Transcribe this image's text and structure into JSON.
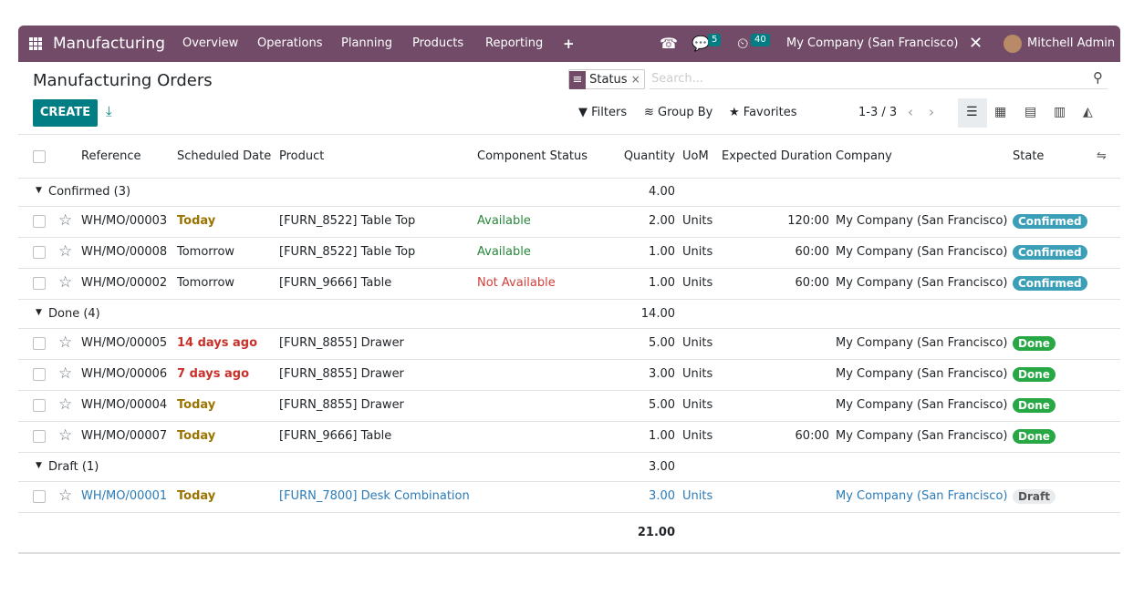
{
  "navbar": {
    "app": "Manufacturing",
    "menu": [
      "Overview",
      "Operations",
      "Planning",
      "Products",
      "Reporting",
      "+"
    ],
    "messages_badge": "5",
    "activities_badge": "40",
    "company": "My Company (San Francisco)",
    "user": "Mitchell Admin"
  },
  "control_panel": {
    "title": "Manufacturing Orders",
    "create": "CREATE",
    "facet_label": "Status",
    "facet_remove": "×",
    "search_placeholder": "Search...",
    "filters": "Filters",
    "group_by": "Group By",
    "favorites": "Favorites",
    "pager": "1-3 / 3"
  },
  "table": {
    "columns": [
      "Reference",
      "Scheduled Date",
      "Product",
      "Component Status",
      "Quantity",
      "UoM",
      "Expected Duration",
      "Company",
      "State"
    ],
    "groups": [
      {
        "name": "Confirmed (3)",
        "quantity": "4.00",
        "rows": [
          {
            "reference": "WH/MO/00003",
            "scheduled_date": "Today",
            "date_color": "#9a7400",
            "product": "[FURN_8522] Table Top",
            "component_status": "Available",
            "status_color": "#28873a",
            "quantity": "2.00",
            "uom": "Units",
            "expected_duration": "120:00",
            "company": "My Company (San Francisco)",
            "state": "Confirmed",
            "state_color": "#3c9fb8"
          },
          {
            "reference": "WH/MO/00008",
            "scheduled_date": "Tomorrow",
            "product": "[FURN_8522] Table Top",
            "component_status": "Available",
            "status_color": "#28873a",
            "quantity": "1.00",
            "uom": "Units",
            "expected_duration": "60:00",
            "company": "My Company (San Francisco)",
            "state": "Confirmed",
            "state_color": "#3c9fb8"
          },
          {
            "reference": "WH/MO/00002",
            "scheduled_date": "Tomorrow",
            "product": "[FURN_9666] Table",
            "component_status": "Not Available",
            "status_color": "#d23f3a",
            "quantity": "1.00",
            "uom": "Units",
            "expected_duration": "60:00",
            "company": "My Company (San Francisco)",
            "state": "Confirmed",
            "state_color": "#3c9fb8"
          }
        ]
      },
      {
        "name": "Done (4)",
        "quantity": "14.00",
        "rows": [
          {
            "reference": "WH/MO/00005",
            "scheduled_date": "14 days ago",
            "date_color": "#c8312a",
            "product": "[FURN_8855] Drawer",
            "quantity": "5.00",
            "uom": "Units",
            "company": "My Company (San Francisco)",
            "state": "Done",
            "state_color": "#28a745"
          },
          {
            "reference": "WH/MO/00006",
            "scheduled_date": "7 days ago",
            "date_color": "#c8312a",
            "product": "[FURN_8855] Drawer",
            "quantity": "3.00",
            "uom": "Units",
            "company": "My Company (San Francisco)",
            "state": "Done",
            "state_color": "#28a745"
          },
          {
            "reference": "WH/MO/00004",
            "scheduled_date": "Today",
            "date_color": "#9a7400",
            "product": "[FURN_8855] Drawer",
            "quantity": "5.00",
            "uom": "Units",
            "company": "My Company (San Francisco)",
            "state": "Done",
            "state_color": "#28a745"
          },
          {
            "reference": "WH/MO/00007",
            "scheduled_date": "Today",
            "date_color": "#9a7400",
            "product": "[FURN_9666] Table",
            "quantity": "1.00",
            "uom": "Units",
            "expected_duration": "60:00",
            "company": "My Company (San Francisco)",
            "state": "Done",
            "state_color": "#28a745"
          }
        ]
      },
      {
        "name": "Draft (1)",
        "quantity": "3.00",
        "rows": [
          {
            "reference": "WH/MO/00001",
            "row_color": "#2b7bb9",
            "scheduled_date": "Today",
            "date_color": "#9a7400",
            "product": "[FURN_7800] Desk Combination",
            "quantity": "3.00",
            "uom": "Units",
            "company": "My Company (San Francisco)",
            "state": "Draft",
            "state_color": "#e9ecef"
          }
        ]
      }
    ],
    "total": "21.00"
  }
}
